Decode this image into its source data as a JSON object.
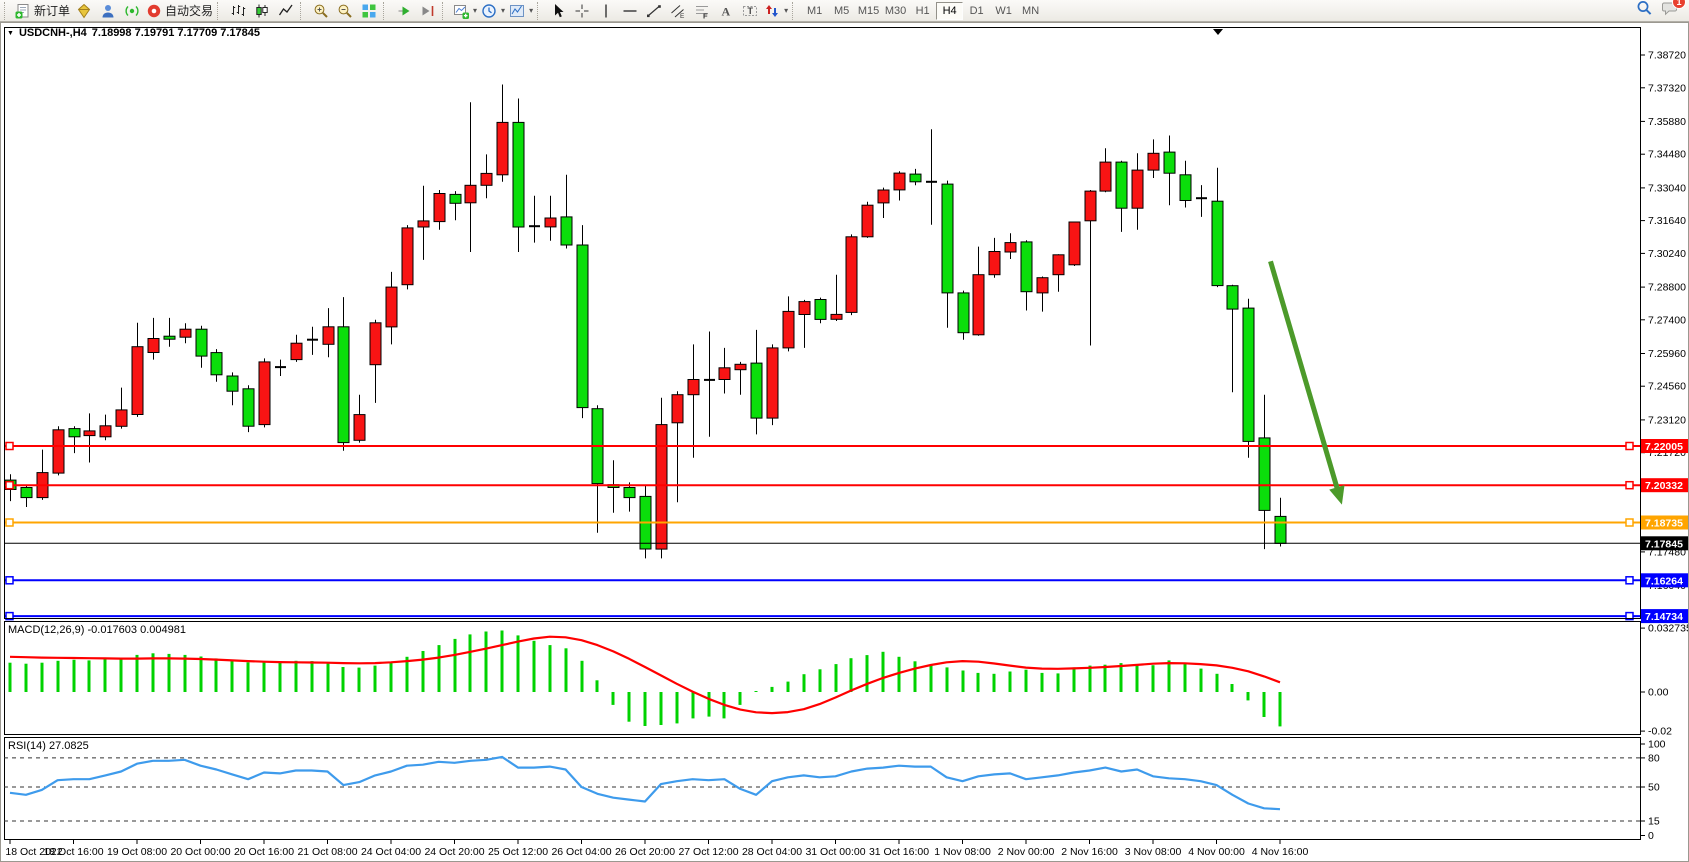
{
  "toolbar": {
    "groups": [
      [
        {
          "name": "new-order",
          "icon": "new-order-icon",
          "label": "新订单"
        },
        {
          "name": "styles",
          "icon": "paint-icon"
        },
        {
          "name": "profiles",
          "icon": "profile-icon"
        },
        {
          "name": "alerts",
          "icon": "signal-icon"
        },
        {
          "name": "auto-trading",
          "icon": "autotrade-icon",
          "label": "自动交易"
        }
      ],
      [
        {
          "name": "bar-chart",
          "icon": "bar-chart-icon"
        },
        {
          "name": "candlestick-chart",
          "icon": "candle-chart-icon"
        },
        {
          "name": "line-chart",
          "icon": "line-chart-icon"
        }
      ],
      [
        {
          "name": "zoom-in",
          "icon": "zoom-in-icon"
        },
        {
          "name": "zoom-out",
          "icon": "zoom-out-icon"
        },
        {
          "name": "tile-windows",
          "icon": "tile-windows-icon"
        }
      ],
      [
        {
          "name": "auto-scroll",
          "icon": "auto-scroll-icon"
        },
        {
          "name": "chart-shift",
          "icon": "chart-shift-icon"
        }
      ],
      [
        {
          "name": "new-chart",
          "icon": "new-chart-icon",
          "caret": true
        },
        {
          "name": "periods",
          "icon": "clock-icon",
          "caret": true
        },
        {
          "name": "templates",
          "icon": "template-icon",
          "caret": true
        }
      ],
      [
        {
          "name": "cursor",
          "icon": "cursor-icon"
        },
        {
          "name": "crosshair",
          "icon": "crosshair-icon"
        },
        {
          "name": "vertical-line",
          "icon": "vertical-line-icon"
        },
        {
          "name": "horizontal-line",
          "icon": "horizontal-line-icon"
        },
        {
          "name": "trendline",
          "icon": "trendline-icon"
        },
        {
          "name": "channel",
          "icon": "channel-icon"
        },
        {
          "name": "fibonacci",
          "icon": "fibonacci-icon"
        },
        {
          "name": "text",
          "icon": "text-icon"
        },
        {
          "name": "text-label",
          "icon": "text-label-icon"
        },
        {
          "name": "arrows",
          "icon": "arrows-icon",
          "caret": true
        }
      ]
    ],
    "timeframes": [
      "M1",
      "M5",
      "M15",
      "M30",
      "H1",
      "H4",
      "D1",
      "W1",
      "MN"
    ],
    "active_timeframe": "H4",
    "search_icon": "search-icon",
    "chat_icon": "chat-icon",
    "notification_count": "1"
  },
  "chart_data": {
    "type": "candlestick",
    "symbol": "USDCNH-",
    "timeframe": "H4",
    "symbol_header": {
      "dropdown_glyph": "▼",
      "symbol": "USDCNH-,H4",
      "ohlc": "7.18998 7.19791 7.17709 7.17845"
    },
    "price_axis_ticks": [
      "7.38720",
      "7.37320",
      "7.35880",
      "7.34480",
      "7.33040",
      "7.31640",
      "7.30240",
      "7.28800",
      "7.27400",
      "7.25960",
      "7.24560",
      "7.23120",
      "7.21720",
      "7.17480",
      "7.16040"
    ],
    "price_axis_range": [
      7.139,
      7.393
    ],
    "time_labels": [
      "18 Oct 2022",
      "18 Oct 16:00",
      "19 Oct 08:00",
      "20 Oct 00:00",
      "20 Oct 16:00",
      "21 Oct 08:00",
      "24 Oct 04:00",
      "24 Oct 20:00",
      "25 Oct 12:00",
      "26 Oct 04:00",
      "26 Oct 20:00",
      "27 Oct 12:00",
      "28 Oct 04:00",
      "31 Oct 00:00",
      "31 Oct 16:00",
      "1 Nov 08:00",
      "2 Nov 00:00",
      "2 Nov 16:00",
      "3 Nov 08:00",
      "4 Nov 00:00",
      "4 Nov 16:00"
    ],
    "bars_per_label": 4,
    "candles": [
      [
        7.2055,
        7.208,
        7.1965,
        7.2015
      ],
      [
        7.2023,
        7.2035,
        7.194,
        7.198
      ],
      [
        7.198,
        7.2185,
        7.197,
        7.2087
      ],
      [
        7.2085,
        7.2285,
        7.2075,
        7.227
      ],
      [
        7.2275,
        7.2285,
        7.217,
        7.224
      ],
      [
        7.2245,
        7.234,
        7.213,
        7.2265
      ],
      [
        7.224,
        7.2335,
        7.2225,
        7.2287
      ],
      [
        7.2285,
        7.245,
        7.2275,
        7.2355
      ],
      [
        7.2335,
        7.2727,
        7.2325,
        7.2625
      ],
      [
        7.26,
        7.2748,
        7.257,
        7.266
      ],
      [
        7.267,
        7.2748,
        7.2625,
        7.2657
      ],
      [
        7.2666,
        7.2725,
        7.264,
        7.27
      ],
      [
        7.27,
        7.2715,
        7.2535,
        7.2585
      ],
      [
        7.26,
        7.2615,
        7.2475,
        7.2505
      ],
      [
        7.25,
        7.2515,
        7.2375,
        7.2435
      ],
      [
        7.2445,
        7.246,
        7.226,
        7.2285
      ],
      [
        7.2292,
        7.2575,
        7.228,
        7.256
      ],
      [
        7.2535,
        7.257,
        7.25,
        7.2538
      ],
      [
        7.257,
        7.2676,
        7.256,
        7.264
      ],
      [
        7.265,
        7.271,
        7.259,
        7.2655
      ],
      [
        7.2635,
        7.279,
        7.258,
        7.271
      ],
      [
        7.271,
        7.2837,
        7.218,
        7.2215
      ],
      [
        7.2225,
        7.242,
        7.2215,
        7.2335
      ],
      [
        7.2548,
        7.274,
        7.2385,
        7.2727
      ],
      [
        7.271,
        7.2945,
        7.2635,
        7.288
      ],
      [
        7.289,
        7.3145,
        7.287,
        7.3133
      ],
      [
        7.3137,
        7.3313,
        7.2996,
        7.3163
      ],
      [
        7.316,
        7.3295,
        7.3125,
        7.328
      ],
      [
        7.3276,
        7.329,
        7.3166,
        7.3238
      ],
      [
        7.324,
        7.367,
        7.303,
        7.3315
      ],
      [
        7.3315,
        7.3447,
        7.326,
        7.3366
      ],
      [
        7.336,
        7.3746,
        7.333,
        7.3584
      ],
      [
        7.3584,
        7.3686,
        7.303,
        7.3137
      ],
      [
        7.3135,
        7.327,
        7.307,
        7.314
      ],
      [
        7.3137,
        7.327,
        7.3078,
        7.3175
      ],
      [
        7.318,
        7.336,
        7.3045,
        7.306
      ],
      [
        7.306,
        7.3145,
        7.232,
        7.2365
      ],
      [
        7.236,
        7.2375,
        7.183,
        7.204
      ],
      [
        7.2035,
        7.214,
        7.1915,
        7.2023
      ],
      [
        7.2023,
        7.2045,
        7.192,
        7.198
      ],
      [
        7.1985,
        7.2035,
        7.172,
        7.176
      ],
      [
        7.176,
        7.2407,
        7.172,
        7.2292
      ],
      [
        7.23,
        7.2435,
        7.196,
        7.242
      ],
      [
        7.242,
        7.2635,
        7.215,
        7.2485
      ],
      [
        7.248,
        7.269,
        7.224,
        7.2483
      ],
      [
        7.2485,
        7.262,
        7.2425,
        7.2535
      ],
      [
        7.2527,
        7.256,
        7.242,
        7.255
      ],
      [
        7.2555,
        7.2697,
        7.225,
        7.232
      ],
      [
        7.232,
        7.2635,
        7.229,
        7.262
      ],
      [
        7.262,
        7.284,
        7.2605,
        7.2776
      ],
      [
        7.2763,
        7.2825,
        7.262,
        7.2818
      ],
      [
        7.2827,
        7.2835,
        7.2725,
        7.2742
      ],
      [
        7.2742,
        7.2933,
        7.2735,
        7.2763
      ],
      [
        7.2772,
        7.3105,
        7.276,
        7.3095
      ],
      [
        7.3095,
        7.3245,
        7.309,
        7.323
      ],
      [
        7.324,
        7.3305,
        7.3175,
        7.3295
      ],
      [
        7.3295,
        7.3375,
        7.325,
        7.3367
      ],
      [
        7.3363,
        7.3385,
        7.3315,
        7.333
      ],
      [
        7.3325,
        7.3555,
        7.3146,
        7.333
      ],
      [
        7.332,
        7.3335,
        7.2706,
        7.2855
      ],
      [
        7.2855,
        7.2865,
        7.2655,
        7.2685
      ],
      [
        7.2676,
        7.3053,
        7.2672,
        7.2933
      ],
      [
        7.2933,
        7.309,
        7.292,
        7.3032
      ],
      [
        7.303,
        7.311,
        7.3,
        7.307
      ],
      [
        7.3073,
        7.308,
        7.278,
        7.286
      ],
      [
        7.2855,
        7.2925,
        7.2775,
        7.292
      ],
      [
        7.2933,
        7.302,
        7.286,
        7.3018
      ],
      [
        7.2975,
        7.316,
        7.297,
        7.3158
      ],
      [
        7.3163,
        7.3295,
        7.263,
        7.329
      ],
      [
        7.329,
        7.3473,
        7.3285,
        7.3414
      ],
      [
        7.3414,
        7.342,
        7.3116,
        7.3217
      ],
      [
        7.3217,
        7.3452,
        7.3125,
        7.338
      ],
      [
        7.338,
        7.3511,
        7.3346,
        7.3452
      ],
      [
        7.3457,
        7.3528,
        7.323,
        7.3367
      ],
      [
        7.336,
        7.342,
        7.322,
        7.325
      ],
      [
        7.3255,
        7.3316,
        7.318,
        7.326
      ],
      [
        7.3247,
        7.339,
        7.288,
        7.2886
      ],
      [
        7.2886,
        7.289,
        7.243,
        7.2786
      ],
      [
        7.279,
        7.283,
        7.215,
        7.222
      ],
      [
        7.2235,
        7.242,
        7.176,
        7.1925
      ],
      [
        7.18998,
        7.19791,
        7.17709,
        7.17845
      ]
    ],
    "hlines": [
      {
        "price": 7.22005,
        "label": "7.22005",
        "color": "#FF0000"
      },
      {
        "price": 7.20332,
        "label": "7.20332",
        "color": "#FF0000"
      },
      {
        "price": 7.18735,
        "label": "7.18735",
        "color": "#FFA500"
      },
      {
        "price": 7.16264,
        "label": "7.16264",
        "color": "#0000FF"
      },
      {
        "price": 7.14734,
        "label": "7.14734",
        "color": "#0000FF"
      }
    ],
    "current_price": {
      "price": 7.17845,
      "label": "7.17845",
      "color": "#000000"
    },
    "arrow_annotation": {
      "from": {
        "bar": 79.4,
        "price": 7.299
      },
      "to": {
        "bar": 83.9,
        "price": 7.195
      },
      "color": "#4C9A2A"
    },
    "macd": {
      "label": "MACD(12,26,9)",
      "values_text": "-0.017603 0.004981",
      "scale_ticks": [
        "0.032735",
        "0.00",
        "-0.02"
      ],
      "histogram": [
        0.015,
        0.0145,
        0.015,
        0.016,
        0.0165,
        0.0162,
        0.0168,
        0.0175,
        0.019,
        0.0198,
        0.0195,
        0.019,
        0.0182,
        0.0172,
        0.0162,
        0.0152,
        0.0155,
        0.0158,
        0.016,
        0.0158,
        0.015,
        0.0128,
        0.0125,
        0.0135,
        0.0155,
        0.018,
        0.021,
        0.024,
        0.0272,
        0.0295,
        0.031,
        0.0315,
        0.029,
        0.0262,
        0.024,
        0.0224,
        0.016,
        0.006,
        -0.0066,
        -0.0152,
        -0.0174,
        -0.0169,
        -0.0161,
        -0.0135,
        -0.0126,
        -0.0135,
        -0.0066,
        0.0005,
        0.0026,
        0.0053,
        0.0091,
        0.0116,
        0.0143,
        0.0173,
        0.0189,
        0.0206,
        0.018,
        0.0157,
        0.014,
        0.0126,
        0.011,
        0.0098,
        0.0093,
        0.0105,
        0.0114,
        0.0098,
        0.0095,
        0.0126,
        0.0135,
        0.014,
        0.0148,
        0.014,
        0.0137,
        0.0162,
        0.0145,
        0.012,
        0.0093,
        0.0041,
        -0.0043,
        -0.0128,
        -0.017603
      ],
      "signal": [
        0.018,
        0.0178,
        0.0176,
        0.0175,
        0.0174,
        0.0173,
        0.0172,
        0.0171,
        0.0171,
        0.0172,
        0.0172,
        0.0171,
        0.0169,
        0.0166,
        0.0162,
        0.0158,
        0.0155,
        0.0153,
        0.0152,
        0.0151,
        0.015,
        0.0148,
        0.0147,
        0.0148,
        0.0152,
        0.0158,
        0.0166,
        0.0176,
        0.019,
        0.0206,
        0.0222,
        0.024,
        0.0258,
        0.0274,
        0.0283,
        0.028,
        0.0265,
        0.024,
        0.0208,
        0.017,
        0.0128,
        0.0085,
        0.0042,
        0.0002,
        -0.0035,
        -0.0066,
        -0.009,
        -0.0104,
        -0.0108,
        -0.0103,
        -0.0088,
        -0.0062,
        -0.0028,
        0.0008,
        0.0042,
        0.0072,
        0.0098,
        0.012,
        0.0138,
        0.0152,
        0.0158,
        0.0155,
        0.0146,
        0.0135,
        0.0125,
        0.012,
        0.0119,
        0.0121,
        0.0124,
        0.0128,
        0.0133,
        0.0139,
        0.0145,
        0.0148,
        0.0147,
        0.0143,
        0.0136,
        0.0124,
        0.0106,
        0.008,
        0.004981
      ]
    },
    "rsi": {
      "label": "RSI(14)",
      "value_text": "27.0825",
      "scale_ticks": [
        "100",
        "80",
        "50",
        "15",
        "0"
      ],
      "levels": [
        80,
        50,
        15
      ],
      "values": [
        44,
        42,
        47,
        57,
        58,
        58,
        62,
        66,
        74,
        77,
        77,
        78,
        72,
        68,
        63,
        58,
        65,
        64,
        67,
        67,
        66,
        52,
        55,
        62,
        66,
        72,
        73,
        76,
        75,
        77,
        78,
        81,
        70,
        70,
        71,
        68,
        50,
        43,
        39,
        37,
        35,
        53,
        56,
        58,
        57,
        58,
        48,
        42,
        56,
        60,
        62,
        60,
        61,
        66,
        69,
        70,
        72,
        71,
        71,
        60,
        56,
        61,
        63,
        64,
        58,
        60,
        62,
        65,
        67,
        70,
        66,
        68,
        61,
        59,
        58,
        56,
        52,
        42,
        33,
        28,
        27.0825
      ]
    },
    "colors": {
      "bull_candle": "#F81414",
      "bear_candle": "#0BDE0B",
      "doji_candle": "#000000",
      "wick": "#000000",
      "macd_histogram": "#00D200",
      "macd_signal": "#FF0000",
      "rsi_line": "#3E9BEC",
      "arrow": "#4C9A2A"
    }
  }
}
